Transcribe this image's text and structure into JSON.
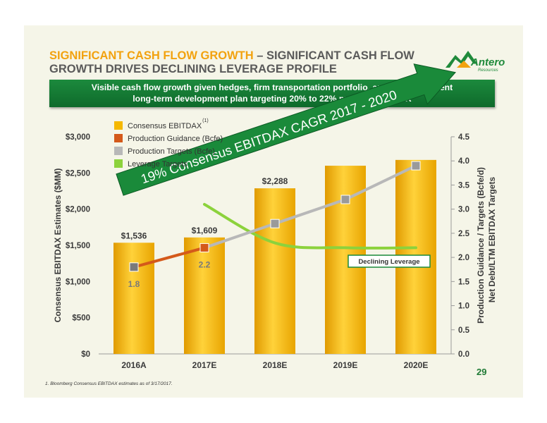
{
  "header": {
    "title_highlight": "SIGNIFICANT CASH FLOW GROWTH",
    "title_rest": " – SIGNIFICANT CASH FLOW GROWTH DRIVES DECLINING LEVERAGE PROFILE",
    "banner_line1": "Visible cash flow growth given hedges, firm transportation portfolio, and capital efficient",
    "banner_line2": "long-term development plan targeting 20% to 22% production CAGR"
  },
  "logo": {
    "text": "Antero",
    "subtext": "Resources"
  },
  "colors": {
    "bar": "#f5b800",
    "guidance": "#d4591a",
    "targets": "#b8b8b8",
    "leverage": "#8cd23c",
    "arrow": "#1a8a3a",
    "banner": "#127336"
  },
  "chart_data": {
    "type": "bar",
    "categories": [
      "2016A",
      "2017E",
      "2018E",
      "2019E",
      "2020E"
    ],
    "series": [
      {
        "name": "Consensus EBITDAX",
        "axis": "left",
        "values": [
          1536,
          1609,
          2288,
          2600,
          2680
        ]
      },
      {
        "name": "Production Guidance (Bcfe)",
        "axis": "right",
        "kind": "line",
        "values": [
          1.8,
          2.2,
          null,
          null,
          null
        ]
      },
      {
        "name": "Production Targets (Bcfe)",
        "axis": "right",
        "kind": "line",
        "values": [
          null,
          2.2,
          2.7,
          3.2,
          3.9
        ]
      },
      {
        "name": "Leverage Targets",
        "axis": "right",
        "kind": "curve",
        "values": [
          null,
          3.1,
          2.3,
          2.2,
          2.2
        ]
      }
    ],
    "data_labels": {
      "bars": [
        "$1,536",
        "$1,609",
        "$2,288",
        "",
        ""
      ],
      "guidance": [
        "1.8",
        "2.2",
        "",
        "",
        ""
      ]
    },
    "legend_superscript": "(1)",
    "ylabel_left": "Consensus EBITDAX Estimates ($MM)",
    "ylabel_right_line1": "Production Guidance / Targets (Bcfe/d)",
    "ylabel_right_line2": "Net Debt/LTM EBITDAX Targets",
    "yticks_left": [
      "$0",
      "$500",
      "$1,000",
      "$1,500",
      "$2,000",
      "$2,500",
      "$3,000"
    ],
    "yticks_right": [
      "0.0",
      "0.5",
      "1.0",
      "1.5",
      "2.0",
      "2.5",
      "3.0",
      "3.5",
      "4.0",
      "4.5"
    ],
    "ylim_left": [
      0,
      3000
    ],
    "ylim_right": [
      0,
      4.5
    ],
    "grid": false,
    "legend_position": "top-left",
    "annotations": {
      "arrow_text": "19% Consensus EBITDAX CAGR 2017 - 2020",
      "leverage_box": "Declining Leverage"
    }
  },
  "footer": {
    "page_number": "29",
    "footnote": "1.    Bloomberg Consensus EBITDAX estimates as of 3/17/2017."
  }
}
